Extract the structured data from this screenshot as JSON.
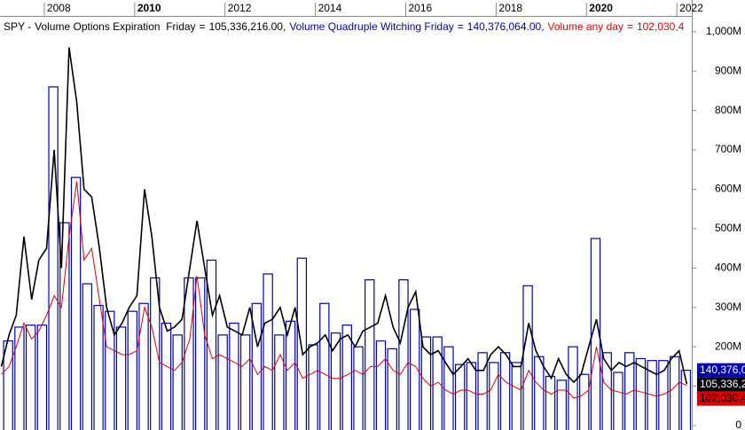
{
  "chart_data": {
    "type": "line",
    "title": "SPY -",
    "legend_sep": "=",
    "legend_delim": ",",
    "xlim": [
      2007.02,
      2022.33
    ],
    "xticks": [
      2008,
      2010,
      2012,
      2014,
      2016,
      2018,
      2020,
      2022
    ],
    "xticks_bold": [
      2010,
      2020
    ],
    "ylim": [
      0,
      1040
    ],
    "yticks": [
      0,
      {
        "value": 100,
        "label": "100M"
      },
      {
        "value": 200,
        "label": "200M"
      },
      {
        "value": 300,
        "label": "300M"
      },
      {
        "value": 400,
        "label": "400M"
      },
      {
        "value": 500,
        "label": "500M"
      },
      {
        "value": 600,
        "label": "600M"
      },
      {
        "value": 700,
        "label": "700M"
      },
      {
        "value": 800,
        "label": "800M"
      },
      {
        "value": 900,
        "label": "900M"
      },
      {
        "value": 1000,
        "label": "1,000M"
      }
    ],
    "series": [
      {
        "name": "Volume Options Expiration  Friday",
        "color": "#000000",
        "style": "line",
        "last_label": "105,336,216.00",
        "x": [
          2007.05,
          2007.22,
          2007.38,
          2007.55,
          2007.72,
          2007.88,
          2008.05,
          2008.22,
          2008.38,
          2008.55,
          2008.72,
          2008.88,
          2009.05,
          2009.22,
          2009.38,
          2009.55,
          2009.72,
          2009.88,
          2010.05,
          2010.22,
          2010.38,
          2010.55,
          2010.72,
          2010.88,
          2011.05,
          2011.22,
          2011.38,
          2011.55,
          2011.72,
          2011.88,
          2012.05,
          2012.22,
          2012.38,
          2012.55,
          2012.72,
          2012.88,
          2013.05,
          2013.22,
          2013.38,
          2013.55,
          2013.72,
          2013.88,
          2014.05,
          2014.22,
          2014.38,
          2014.55,
          2014.72,
          2014.88,
          2015.05,
          2015.22,
          2015.38,
          2015.55,
          2015.72,
          2015.88,
          2016.05,
          2016.22,
          2016.38,
          2016.55,
          2016.72,
          2016.88,
          2017.05,
          2017.22,
          2017.38,
          2017.55,
          2017.72,
          2017.88,
          2018.05,
          2018.22,
          2018.38,
          2018.55,
          2018.72,
          2018.88,
          2019.05,
          2019.22,
          2019.38,
          2019.55,
          2019.72,
          2019.88,
          2020.05,
          2020.22,
          2020.38,
          2020.55,
          2020.72,
          2020.88,
          2021.05,
          2021.22,
          2021.38,
          2021.55,
          2021.72,
          2021.88,
          2022.05,
          2022.22
        ],
        "values": [
          150,
          230,
          280,
          480,
          320,
          420,
          450,
          700,
          400,
          960,
          820,
          600,
          580,
          450,
          300,
          230,
          260,
          300,
          330,
          600,
          480,
          300,
          240,
          250,
          270,
          400,
          520,
          400,
          280,
          330,
          250,
          240,
          230,
          300,
          200,
          260,
          270,
          300,
          230,
          300,
          180,
          200,
          210,
          230,
          190,
          220,
          230,
          200,
          240,
          250,
          260,
          330,
          250,
          210,
          300,
          340,
          200,
          180,
          190,
          160,
          130,
          150,
          170,
          140,
          140,
          180,
          200,
          180,
          150,
          150,
          260,
          190,
          150,
          120,
          170,
          130,
          110,
          130,
          200,
          270,
          170,
          140,
          160,
          150,
          160,
          150,
          140,
          130,
          140,
          170,
          190,
          105.336216
        ]
      },
      {
        "name": "Volume Quadruple Witching Friday",
        "color": "#0000b0",
        "style": "box",
        "last_label": "140,376,064.00",
        "x": [
          2007.1,
          2007.35,
          2007.6,
          2007.85,
          2008.1,
          2008.35,
          2008.6,
          2008.85,
          2009.1,
          2009.35,
          2009.6,
          2009.85,
          2010.1,
          2010.35,
          2010.6,
          2010.85,
          2011.1,
          2011.35,
          2011.6,
          2011.85,
          2012.1,
          2012.35,
          2012.6,
          2012.85,
          2013.1,
          2013.35,
          2013.6,
          2013.85,
          2014.1,
          2014.35,
          2014.6,
          2014.85,
          2015.1,
          2015.35,
          2015.6,
          2015.85,
          2016.1,
          2016.35,
          2016.6,
          2016.85,
          2017.1,
          2017.35,
          2017.6,
          2017.85,
          2018.1,
          2018.35,
          2018.6,
          2018.85,
          2019.1,
          2019.35,
          2019.6,
          2019.85,
          2020.1,
          2020.35,
          2020.6,
          2020.85,
          2021.1,
          2021.35,
          2021.6,
          2021.85,
          2022.1
        ],
        "values": [
          215,
          250,
          255,
          255,
          860,
          515,
          630,
          360,
          305,
          290,
          250,
          290,
          310,
          375,
          260,
          230,
          375,
          375,
          420,
          230,
          260,
          230,
          310,
          385,
          230,
          265,
          425,
          205,
          310,
          235,
          255,
          200,
          370,
          215,
          195,
          370,
          295,
          225,
          225,
          200,
          155,
          160,
          185,
          160,
          185,
          160,
          355,
          175,
          125,
          115,
          200,
          130,
          475,
          185,
          135,
          185,
          170,
          165,
          165,
          175,
          140.376064
        ]
      },
      {
        "name": "Volume any day",
        "color": "#dd0000",
        "style": "line",
        "last_label": "102,030,4",
        "x": [
          2007.05,
          2007.22,
          2007.38,
          2007.55,
          2007.72,
          2007.88,
          2008.05,
          2008.22,
          2008.38,
          2008.55,
          2008.72,
          2008.88,
          2009.05,
          2009.22,
          2009.38,
          2009.55,
          2009.72,
          2009.88,
          2010.05,
          2010.22,
          2010.38,
          2010.55,
          2010.72,
          2010.88,
          2011.05,
          2011.22,
          2011.38,
          2011.55,
          2011.72,
          2011.88,
          2012.05,
          2012.22,
          2012.38,
          2012.55,
          2012.72,
          2012.88,
          2013.05,
          2013.22,
          2013.38,
          2013.55,
          2013.72,
          2013.88,
          2014.05,
          2014.22,
          2014.38,
          2014.55,
          2014.72,
          2014.88,
          2015.05,
          2015.22,
          2015.38,
          2015.55,
          2015.72,
          2015.88,
          2016.05,
          2016.22,
          2016.38,
          2016.55,
          2016.72,
          2016.88,
          2017.05,
          2017.22,
          2017.38,
          2017.55,
          2017.72,
          2017.88,
          2018.05,
          2018.22,
          2018.38,
          2018.55,
          2018.72,
          2018.88,
          2019.05,
          2019.22,
          2019.38,
          2019.55,
          2019.72,
          2019.88,
          2020.05,
          2020.22,
          2020.38,
          2020.55,
          2020.72,
          2020.88,
          2021.05,
          2021.22,
          2021.38,
          2021.55,
          2021.72,
          2021.88,
          2022.05,
          2022.22
        ],
        "values": [
          130,
          150,
          200,
          260,
          220,
          240,
          280,
          330,
          300,
          480,
          620,
          420,
          450,
          320,
          200,
          190,
          180,
          180,
          190,
          300,
          250,
          160,
          150,
          140,
          160,
          220,
          380,
          230,
          170,
          180,
          170,
          160,
          150,
          170,
          130,
          150,
          140,
          180,
          140,
          160,
          120,
          130,
          140,
          130,
          120,
          120,
          130,
          140,
          130,
          150,
          150,
          170,
          140,
          130,
          160,
          150,
          120,
          100,
          110,
          90,
          80,
          90,
          90,
          80,
          80,
          90,
          130,
          110,
          100,
          90,
          140,
          110,
          90,
          80,
          90,
          90,
          70,
          75,
          90,
          200,
          110,
          90,
          85,
          80,
          90,
          85,
          80,
          75,
          80,
          90,
          110,
          102.0304
        ]
      }
    ]
  }
}
